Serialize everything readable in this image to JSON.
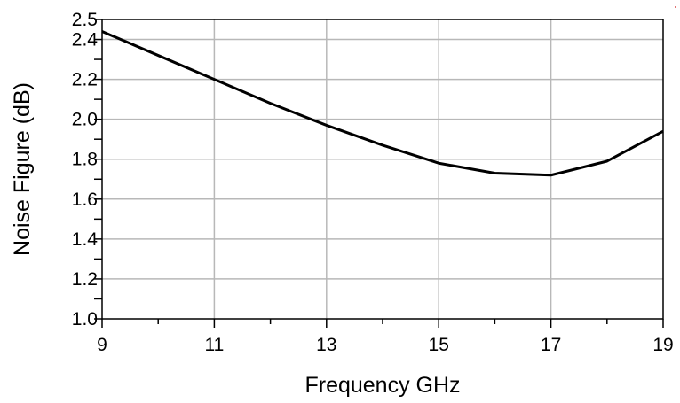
{
  "chart_data": {
    "type": "line",
    "title": "",
    "xlabel": "Frequency GHz",
    "ylabel": "Noise Figure (dB)",
    "xlim": [
      9,
      19
    ],
    "ylim": [
      1.0,
      2.5
    ],
    "x_ticks": [
      9,
      11,
      13,
      15,
      17,
      19
    ],
    "y_ticks": [
      1.0,
      1.2,
      1.4,
      1.6,
      1.8,
      2.0,
      2.2,
      2.4,
      2.5
    ],
    "x_tick_labels": [
      "9",
      "11",
      "13",
      "15",
      "17",
      "19"
    ],
    "y_tick_labels": [
      "1.0",
      "1.2",
      "1.4",
      "1.6",
      "1.8",
      "2.0",
      "2.2",
      "2.4",
      "2.5"
    ],
    "grid": true,
    "series": [
      {
        "color": "#000000",
        "x": [
          9,
          10,
          11,
          12,
          13,
          14,
          15,
          16,
          17,
          18,
          19
        ],
        "y": [
          2.44,
          2.32,
          2.2,
          2.08,
          1.97,
          1.87,
          1.78,
          1.73,
          1.72,
          1.79,
          1.94
        ]
      }
    ]
  }
}
